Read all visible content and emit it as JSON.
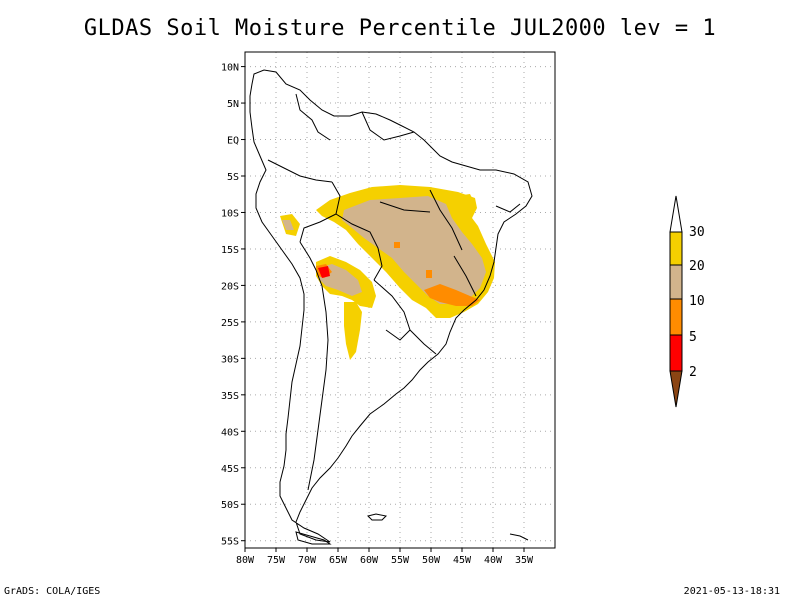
{
  "title": "GLDAS Soil Moisture Percentile JUL2000 lev = 1",
  "map": {
    "lon_range": [
      -80,
      -30
    ],
    "lat_range": [
      -56,
      12
    ],
    "lat_labels": [
      "10N",
      "5N",
      "EQ",
      "5S",
      "10S",
      "15S",
      "20S",
      "25S",
      "30S",
      "35S",
      "40S",
      "45S",
      "50S",
      "55S"
    ],
    "lat_values": [
      10,
      5,
      0,
      -5,
      -10,
      -15,
      -20,
      -25,
      -30,
      -35,
      -40,
      -45,
      -50,
      -55
    ],
    "lon_labels": [
      "80W",
      "75W",
      "70W",
      "65W",
      "60W",
      "55W",
      "50W",
      "45W",
      "40W",
      "35W"
    ],
    "lon_values": [
      -80,
      -75,
      -70,
      -65,
      -60,
      -55,
      -50,
      -45,
      -40,
      -35
    ],
    "grid": true
  },
  "legend": {
    "labels": [
      "30",
      "20",
      "10",
      "5",
      "2"
    ],
    "colors": {
      "above_30": "#ffffff",
      "20_30": "#f5d000",
      "10_20": "#d2b48c",
      "5_10": "#ff8c00",
      "2_5": "#ff0000",
      "below_2": "#8b4513"
    }
  },
  "footer": {
    "left": "GrADS: COLA/IGES",
    "right": "2021-05-13-18:31"
  }
}
